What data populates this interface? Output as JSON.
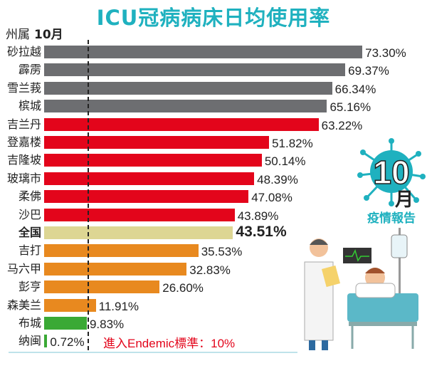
{
  "chart_data": {
    "type": "bar",
    "orientation": "horizontal",
    "title": "ICU冠病病床日均使用率",
    "column_header": "州属",
    "period": "10月",
    "xlim": [
      0,
      75
    ],
    "categories": [
      "砂拉越",
      "霹雳",
      "雪兰莪",
      "槟城",
      "吉兰丹",
      "登嘉楼",
      "吉隆坡",
      "玻璃市",
      "柔佛",
      "沙巴",
      "全国",
      "吉打",
      "马六甲",
      "彭亨",
      "森美兰",
      "布城",
      "纳闽"
    ],
    "values": [
      73.3,
      69.37,
      66.34,
      65.16,
      63.22,
      51.82,
      50.14,
      48.39,
      47.08,
      43.89,
      43.51,
      35.53,
      32.83,
      26.6,
      11.91,
      9.83,
      0.72
    ],
    "value_labels": [
      "73.30%",
      "69.37%",
      "66.34%",
      "65.16%",
      "63.22%",
      "51.82%",
      "50.14%",
      "48.39%",
      "47.08%",
      "43.89%",
      "43.51%",
      "35.53%",
      "32.83%",
      "26.60%",
      "11.91%",
      "9.83%",
      "0.72%"
    ],
    "groups": [
      "gray",
      "gray",
      "gray",
      "gray",
      "red",
      "red",
      "red",
      "red",
      "red",
      "red",
      "national",
      "orange",
      "orange",
      "orange",
      "orange",
      "green",
      "green"
    ],
    "reference_line": {
      "value": 10,
      "label": "進入Endemic標準：10%"
    }
  },
  "colors": {
    "gray": "#6d6e71",
    "red": "#e3051b",
    "national": "#ddd693",
    "orange": "#e8891f",
    "green": "#3aa935",
    "accent": "#1fb1bf"
  },
  "badge": {
    "number": "10",
    "month": "月",
    "caption": "疫情報告"
  }
}
